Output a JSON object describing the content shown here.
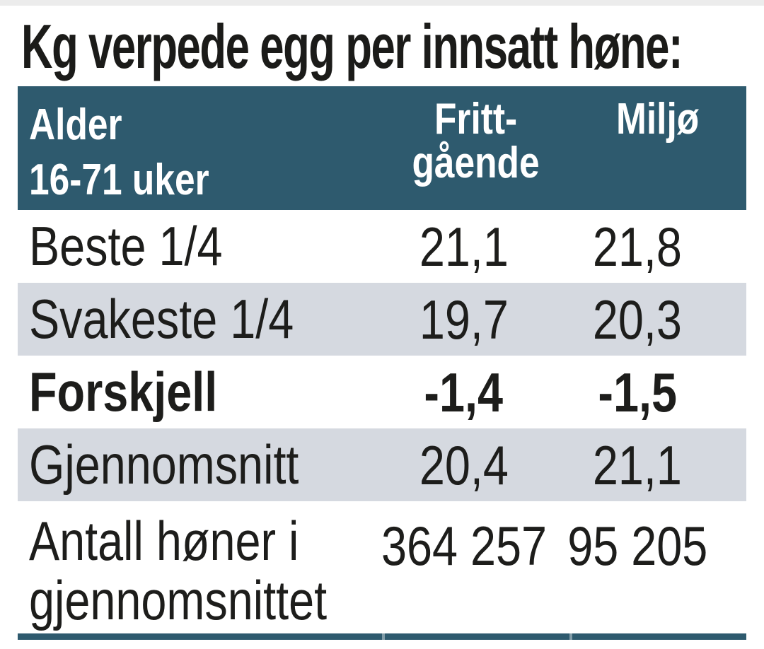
{
  "title": "Kg verpede egg per innsatt høne:",
  "header": {
    "col1": [
      "Alder",
      "16-71 uker"
    ],
    "col2": [
      "Fritt-",
      "gående"
    ],
    "col3": "Miljø"
  },
  "chart_data": {
    "type": "table",
    "title": "Kg verpede egg per innsatt høne:",
    "columns": [
      "Alder 16-71 uker",
      "Frittgående",
      "Miljø"
    ],
    "rows": [
      [
        "Beste 1/4",
        "21,1",
        "21,8"
      ],
      [
        "Svakeste 1/4",
        "19,7",
        "20,3"
      ],
      [
        "Forskjell",
        "-1,4",
        "-1,5"
      ],
      [
        "Gjennomsnitt",
        "20,4",
        "21,1"
      ],
      [
        "Antall høner i gjennomsnittet",
        "364 257",
        "95 205"
      ]
    ],
    "striped_row_indices": [
      1,
      3
    ],
    "bold_row_indices": [
      2
    ],
    "legend_position": "none",
    "grid": false
  },
  "colors": {
    "header_bg": "#2e5a6e",
    "header_text": "#ffffff",
    "stripe_bg": "#d5d9e0",
    "body_text": "#1d1d1b",
    "bottom_rule": "#2e5a6e"
  }
}
